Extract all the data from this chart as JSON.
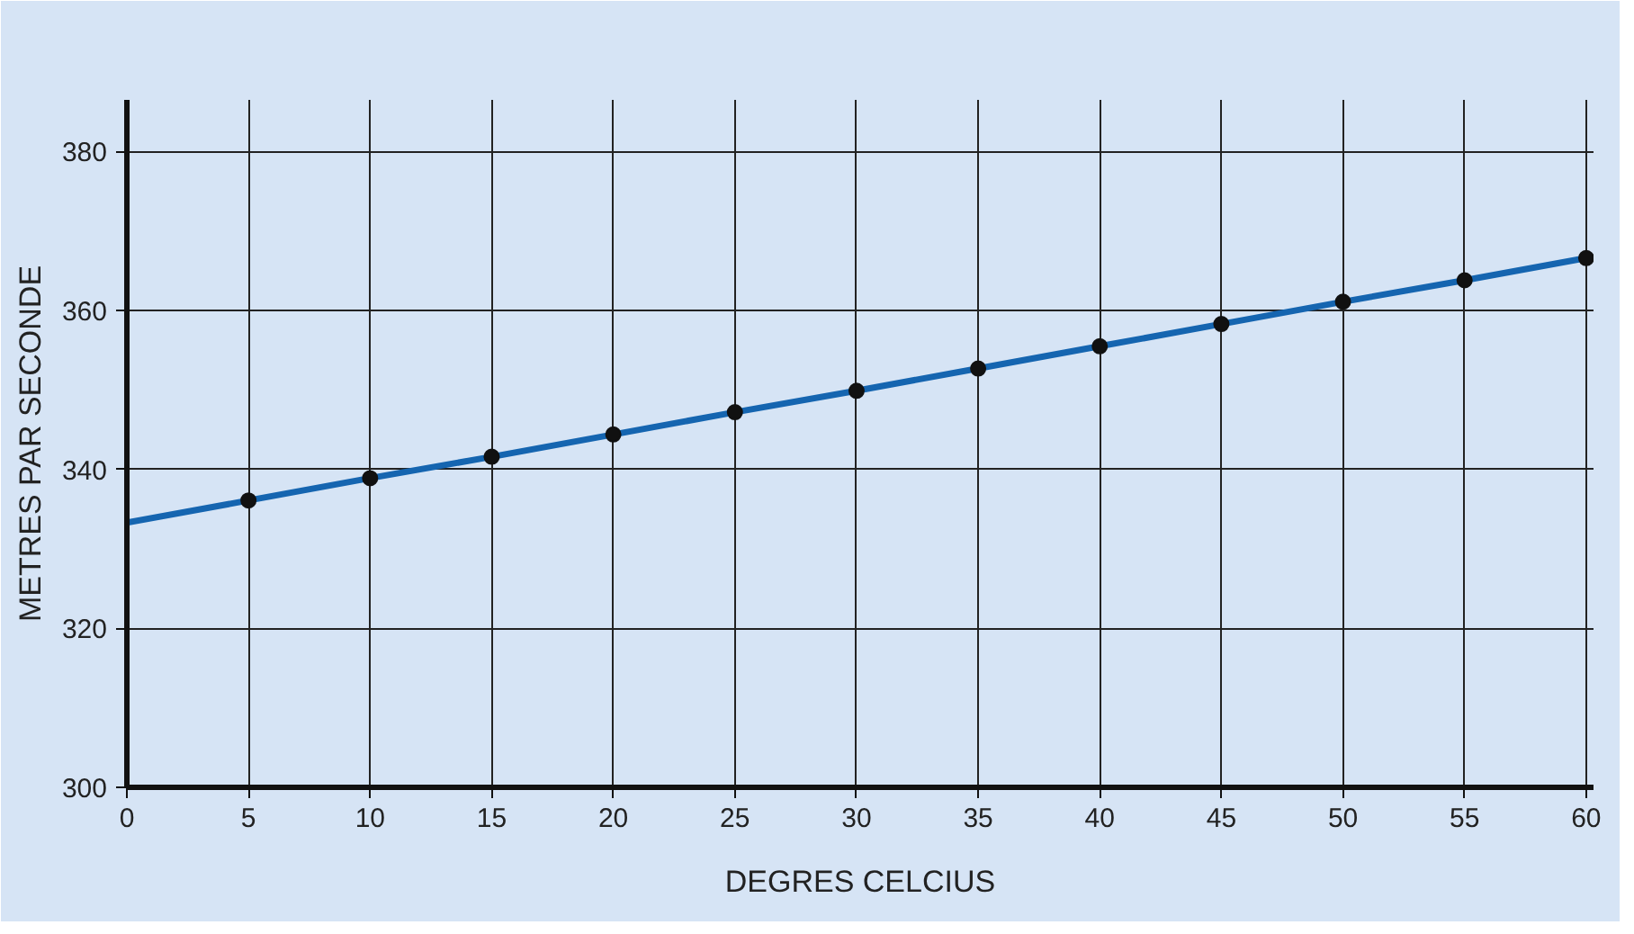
{
  "chart_data": {
    "type": "line",
    "xlabel": "DEGRES CELCIUS",
    "ylabel": "METRES PAR SECONDE",
    "xlim": [
      0,
      60.3
    ],
    "ylim": [
      300,
      386.5
    ],
    "xticks": [
      0,
      5,
      10,
      15,
      20,
      25,
      30,
      35,
      40,
      45,
      50,
      55,
      60
    ],
    "yticks": [
      300,
      320,
      340,
      360,
      380
    ],
    "grid": true,
    "series": [
      {
        "color": "#1565b0",
        "marker": "none",
        "x": [
          0,
          5,
          10,
          15,
          20,
          25,
          30,
          35,
          40,
          45,
          50,
          55,
          60
        ],
        "values": [
          333.3,
          336.1,
          338.9,
          341.6,
          344.4,
          347.2,
          349.9,
          352.7,
          355.5,
          358.3,
          361.1,
          363.8,
          366.6
        ]
      },
      {
        "type": "scatter",
        "color": "#111111",
        "marker": "circle",
        "x": [
          5,
          10,
          15,
          20,
          25,
          30,
          35,
          40,
          45,
          50,
          55,
          60
        ],
        "values": [
          336.1,
          338.9,
          341.6,
          344.4,
          347.2,
          349.9,
          352.7,
          355.5,
          358.3,
          361.1,
          363.8,
          366.6
        ]
      }
    ]
  }
}
